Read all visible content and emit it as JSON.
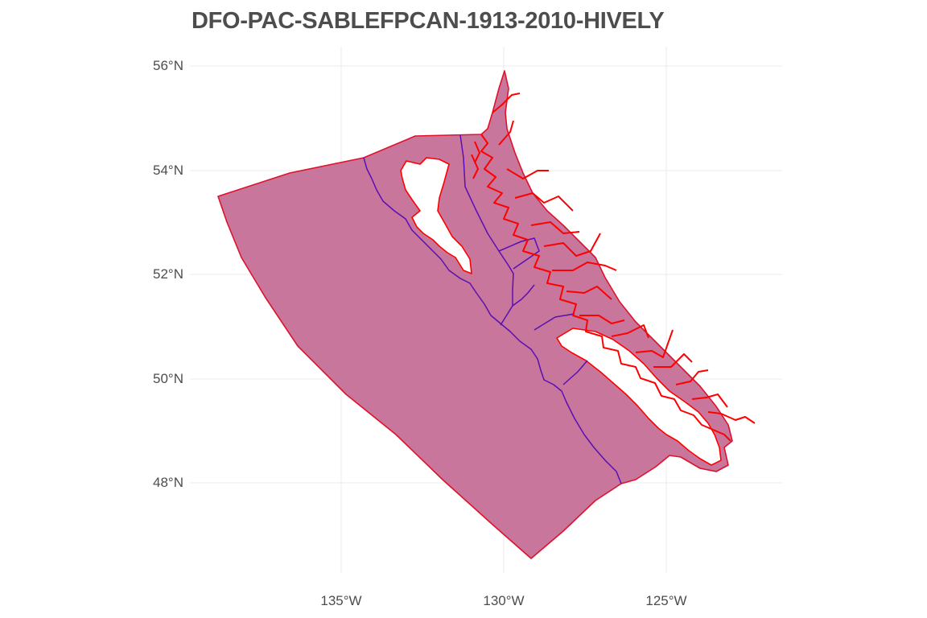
{
  "title": "DFO-PAC-SABLEFPCAN-1913-2010-HIVELY",
  "axes": {
    "y_ticks": [
      "56°N",
      "54°N",
      "52°N",
      "50°N",
      "48°N"
    ],
    "x_ticks": [
      "135°W",
      "130°W",
      "125°W"
    ]
  },
  "colors": {
    "fill": "#c8769c",
    "outline": "#e0112b",
    "zone_lines": "#5a0fb4",
    "coast": "#ff0000",
    "grid": "#ebebeb",
    "text": "#4d4d4d"
  }
}
